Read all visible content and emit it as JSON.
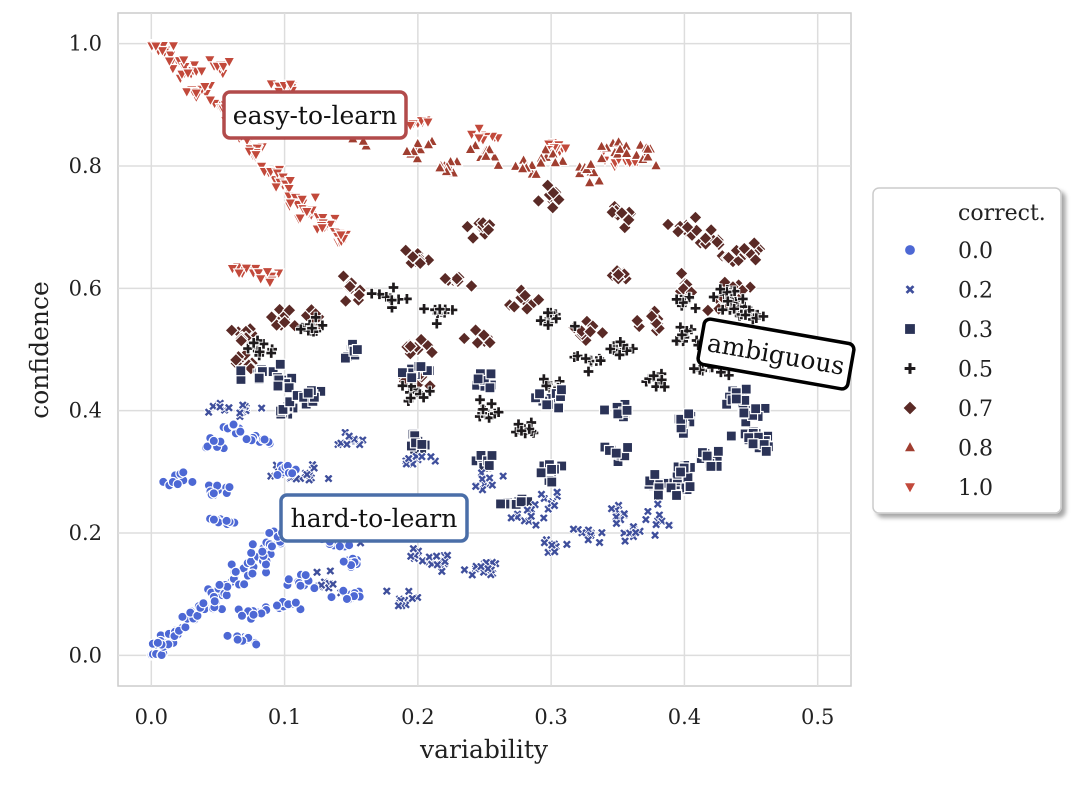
{
  "chart_data": {
    "type": "scatter",
    "title": "",
    "xlabel": "variability",
    "ylabel": "confidence",
    "xlim": [
      -0.025,
      0.525
    ],
    "ylim": [
      -0.05,
      1.05
    ],
    "xticks": [
      0.0,
      0.1,
      0.2,
      0.3,
      0.4,
      0.5
    ],
    "xtick_labels": [
      "0.0",
      "0.1",
      "0.2",
      "0.3",
      "0.4",
      "0.5"
    ],
    "yticks": [
      0.0,
      0.2,
      0.4,
      0.6,
      0.8,
      1.0
    ],
    "ytick_labels": [
      "0.0",
      "0.2",
      "0.4",
      "0.6",
      "0.8",
      "1.0"
    ],
    "grid": true,
    "legend": {
      "title": "correct.",
      "position": "outside-right",
      "entries": [
        {
          "label": "0.0",
          "marker": "circle",
          "color": "#4d68d4"
        },
        {
          "label": "0.2",
          "marker": "x",
          "color": "#3f4f9c"
        },
        {
          "label": "0.3",
          "marker": "square",
          "color": "#2b3357"
        },
        {
          "label": "0.5",
          "marker": "plus",
          "color": "#1e1a1c"
        },
        {
          "label": "0.7",
          "marker": "diamond",
          "color": "#5a2a26"
        },
        {
          "label": "0.8",
          "marker": "triangle-up",
          "color": "#a03e30"
        },
        {
          "label": "1.0",
          "marker": "triangle-down",
          "color": "#c2493b"
        }
      ]
    },
    "annotations": [
      {
        "text": "easy-to-learn",
        "x": 0.123,
        "y": 0.885,
        "border_color": "#b24b4b",
        "rotation": 0
      },
      {
        "text": "ambiguous",
        "x": 0.437,
        "y": 0.495,
        "border_color": "#000000",
        "rotation": 10
      },
      {
        "text": "hard-to-learn",
        "x": 0.147,
        "y": 0.228,
        "border_color": "#4a6ea8",
        "rotation": 0
      }
    ],
    "series": [
      {
        "name": "1.0",
        "marker": "triangle-down",
        "color": "#c2493b",
        "region": "easy-to-learn",
        "approx_points": [
          [
            0.0,
            1.0
          ],
          [
            0.01,
            0.99
          ],
          [
            0.02,
            0.97
          ],
          [
            0.03,
            0.95
          ],
          [
            0.04,
            0.92
          ],
          [
            0.05,
            0.9
          ],
          [
            0.06,
            0.87
          ],
          [
            0.07,
            0.85
          ],
          [
            0.08,
            0.82
          ],
          [
            0.09,
            0.79
          ],
          [
            0.1,
            0.77
          ],
          [
            0.11,
            0.74
          ],
          [
            0.12,
            0.72
          ],
          [
            0.13,
            0.7
          ],
          [
            0.14,
            0.68
          ],
          [
            0.05,
            0.96
          ],
          [
            0.1,
            0.93
          ],
          [
            0.15,
            0.9
          ],
          [
            0.2,
            0.87
          ],
          [
            0.25,
            0.85
          ],
          [
            0.3,
            0.83
          ],
          [
            0.35,
            0.81
          ],
          [
            0.07,
            0.63
          ],
          [
            0.09,
            0.62
          ]
        ]
      },
      {
        "name": "0.8",
        "marker": "triangle-up",
        "color": "#a03e30",
        "region": "easy-to-learn",
        "approx_points": [
          [
            0.15,
            0.85
          ],
          [
            0.2,
            0.83
          ],
          [
            0.25,
            0.82
          ],
          [
            0.3,
            0.82
          ],
          [
            0.35,
            0.83
          ],
          [
            0.37,
            0.82
          ],
          [
            0.22,
            0.8
          ],
          [
            0.28,
            0.8
          ],
          [
            0.33,
            0.79
          ]
        ]
      },
      {
        "name": "0.7",
        "marker": "diamond",
        "color": "#5a2a26",
        "region": "ambiguous",
        "approx_points": [
          [
            0.07,
            0.52
          ],
          [
            0.07,
            0.48
          ],
          [
            0.1,
            0.55
          ],
          [
            0.12,
            0.55
          ],
          [
            0.15,
            0.6
          ],
          [
            0.2,
            0.65
          ],
          [
            0.25,
            0.7
          ],
          [
            0.3,
            0.75
          ],
          [
            0.35,
            0.72
          ],
          [
            0.4,
            0.7
          ],
          [
            0.42,
            0.68
          ],
          [
            0.44,
            0.65
          ],
          [
            0.45,
            0.66
          ],
          [
            0.44,
            0.6
          ],
          [
            0.43,
            0.57
          ],
          [
            0.38,
            0.55
          ],
          [
            0.33,
            0.53
          ],
          [
            0.28,
            0.58
          ],
          [
            0.23,
            0.62
          ],
          [
            0.2,
            0.5
          ],
          [
            0.2,
            0.45
          ],
          [
            0.25,
            0.52
          ],
          [
            0.35,
            0.62
          ],
          [
            0.4,
            0.6
          ]
        ]
      },
      {
        "name": "0.5",
        "marker": "plus",
        "color": "#1e1a1c",
        "region": "ambiguous",
        "approx_points": [
          [
            0.08,
            0.5
          ],
          [
            0.12,
            0.53
          ],
          [
            0.18,
            0.58
          ],
          [
            0.22,
            0.56
          ],
          [
            0.3,
            0.55
          ],
          [
            0.35,
            0.5
          ],
          [
            0.4,
            0.58
          ],
          [
            0.43,
            0.59
          ],
          [
            0.44,
            0.57
          ],
          [
            0.45,
            0.56
          ],
          [
            0.42,
            0.47
          ],
          [
            0.38,
            0.45
          ],
          [
            0.3,
            0.44
          ],
          [
            0.25,
            0.4
          ],
          [
            0.28,
            0.37
          ],
          [
            0.2,
            0.43
          ],
          [
            0.33,
            0.48
          ],
          [
            0.4,
            0.52
          ]
        ]
      },
      {
        "name": "0.3",
        "marker": "square",
        "color": "#2b3357",
        "region": "middle",
        "approx_points": [
          [
            0.08,
            0.46
          ],
          [
            0.1,
            0.45
          ],
          [
            0.1,
            0.4
          ],
          [
            0.12,
            0.42
          ],
          [
            0.15,
            0.5
          ],
          [
            0.2,
            0.47
          ],
          [
            0.25,
            0.45
          ],
          [
            0.3,
            0.42
          ],
          [
            0.35,
            0.4
          ],
          [
            0.4,
            0.38
          ],
          [
            0.45,
            0.36
          ],
          [
            0.46,
            0.35
          ],
          [
            0.45,
            0.4
          ],
          [
            0.44,
            0.42
          ],
          [
            0.4,
            0.3
          ],
          [
            0.38,
            0.28
          ],
          [
            0.4,
            0.27
          ],
          [
            0.3,
            0.3
          ],
          [
            0.25,
            0.32
          ],
          [
            0.2,
            0.35
          ],
          [
            0.27,
            0.25
          ],
          [
            0.35,
            0.33
          ],
          [
            0.42,
            0.32
          ]
        ]
      },
      {
        "name": "0.2",
        "marker": "x",
        "color": "#3f4f9c",
        "region": "hard-to-learn",
        "approx_points": [
          [
            0.05,
            0.41
          ],
          [
            0.07,
            0.4
          ],
          [
            0.1,
            0.3
          ],
          [
            0.12,
            0.29
          ],
          [
            0.15,
            0.35
          ],
          [
            0.2,
            0.32
          ],
          [
            0.25,
            0.28
          ],
          [
            0.3,
            0.25
          ],
          [
            0.35,
            0.23
          ],
          [
            0.36,
            0.2
          ],
          [
            0.38,
            0.22
          ],
          [
            0.3,
            0.18
          ],
          [
            0.25,
            0.15
          ],
          [
            0.2,
            0.16
          ],
          [
            0.19,
            0.09
          ],
          [
            0.25,
            0.14
          ],
          [
            0.22,
            0.15
          ],
          [
            0.15,
            0.2
          ],
          [
            0.13,
            0.12
          ],
          [
            0.28,
            0.22
          ],
          [
            0.33,
            0.2
          ]
        ]
      },
      {
        "name": "0.0",
        "marker": "circle",
        "color": "#4d68d4",
        "region": "hard-to-learn",
        "approx_points": [
          [
            0.0,
            0.0
          ],
          [
            0.01,
            0.02
          ],
          [
            0.02,
            0.04
          ],
          [
            0.03,
            0.06
          ],
          [
            0.04,
            0.08
          ],
          [
            0.05,
            0.1
          ],
          [
            0.06,
            0.12
          ],
          [
            0.07,
            0.14
          ],
          [
            0.08,
            0.16
          ],
          [
            0.09,
            0.18
          ],
          [
            0.1,
            0.2
          ],
          [
            0.11,
            0.21
          ],
          [
            0.12,
            0.22
          ],
          [
            0.14,
            0.18
          ],
          [
            0.15,
            0.1
          ],
          [
            0.15,
            0.15
          ],
          [
            0.1,
            0.08
          ],
          [
            0.08,
            0.07
          ],
          [
            0.02,
            0.29
          ],
          [
            0.05,
            0.35
          ],
          [
            0.06,
            0.37
          ],
          [
            0.05,
            0.27
          ],
          [
            0.05,
            0.22
          ],
          [
            0.08,
            0.35
          ],
          [
            0.1,
            0.3
          ],
          [
            0.07,
            0.03
          ],
          [
            0.11,
            0.12
          ]
        ]
      }
    ]
  }
}
